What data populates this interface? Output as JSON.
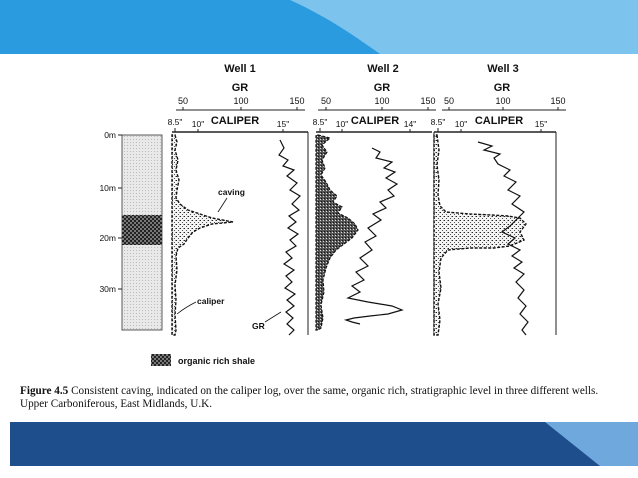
{
  "colors": {
    "banner_light": "#7cc3ee",
    "banner_mid": "#2b9be0",
    "banner_dark": "#1f4e8c",
    "ink": "#111111"
  },
  "depth_axis": {
    "ticks": [
      "0m",
      "10m",
      "20m",
      "30m"
    ]
  },
  "wells": [
    {
      "title": "Well 1",
      "gr_label": "GR",
      "gr_ticks": [
        "50",
        "100",
        "150"
      ],
      "caliper_label": "CALIPER",
      "caliper_ticks": [
        "8.5\"",
        "10\"",
        "15\""
      ]
    },
    {
      "title": "Well 2",
      "gr_label": "GR",
      "gr_ticks": [
        "50",
        "100",
        "150"
      ],
      "caliper_label": "CALIPER",
      "caliper_ticks": [
        "8.5\"",
        "10\"",
        "14\""
      ]
    },
    {
      "title": "Well 3",
      "gr_label": "GR",
      "gr_ticks": [
        "50",
        "100",
        "150"
      ],
      "caliper_label": "CALIPER",
      "caliper_ticks": [
        "8.5\"",
        "10\"",
        "15\""
      ]
    }
  ],
  "annotations": {
    "caving": "caving",
    "caliper": "caliper",
    "gr": "GR"
  },
  "legend": {
    "label": "organic rich shale"
  },
  "caption": {
    "figure_label": "Figure 4.5",
    "text": " Consistent caving, indicated on the caliper log, over the same, organic rich, stratigraphic level in three different wells. Upper Carboniferous, East Midlands, U.K."
  }
}
